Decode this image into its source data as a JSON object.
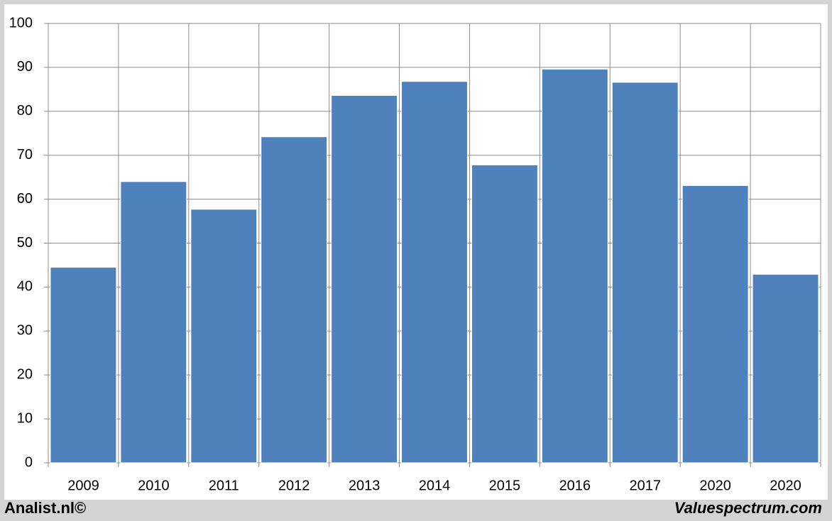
{
  "chart_data": {
    "type": "bar",
    "categories": [
      "2009",
      "2010",
      "2011",
      "2012",
      "2013",
      "2014",
      "2015",
      "2016",
      "2017",
      "2020",
      "2020"
    ],
    "values": [
      44.5,
      64,
      57.7,
      74.2,
      83.6,
      86.8,
      67.8,
      89.6,
      86.6,
      63.1,
      42.9
    ],
    "color": "#4f81bd",
    "ylim": [
      0,
      100
    ],
    "yticks": [
      0,
      10,
      20,
      30,
      40,
      50,
      60,
      70,
      80,
      90,
      100
    ],
    "grid": true
  },
  "footer": {
    "left": "Analist.nl©",
    "right": "Valuespectrum.com"
  }
}
